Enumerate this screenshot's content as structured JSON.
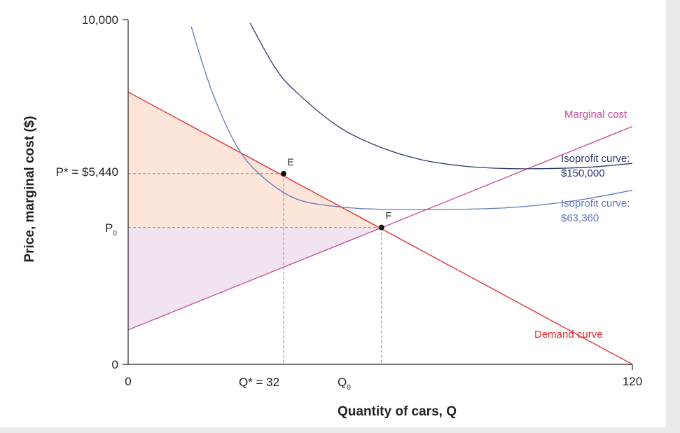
{
  "chart_data": {
    "type": "line",
    "xlabel": "Quantity of cars, Q",
    "ylabel": "Price, marginal cost ($)",
    "xlim": [
      0,
      120
    ],
    "ylim": [
      0,
      10000
    ],
    "x_ticks": [
      "0",
      "120"
    ],
    "y_ticks": [
      "0",
      "10,000"
    ],
    "series": [
      {
        "name": "Demand curve",
        "color": "#e8262b",
        "x": [
          0,
          120
        ],
        "y": [
          7900,
          0
        ]
      },
      {
        "name": "Marginal cost",
        "color": "#c9479b",
        "x": [
          0,
          120
        ],
        "y": [
          1000,
          6900
        ]
      },
      {
        "name_lines": [
          "Isoprofit curve:",
          "$63,360"
        ],
        "color": "#5f78bd",
        "x": [
          15,
          20,
          26,
          32,
          40,
          50,
          60,
          70,
          80,
          90,
          100,
          109,
          120
        ],
        "y": [
          9800,
          7900,
          6300,
          5440,
          4800,
          4570,
          4500,
          4490,
          4500,
          4540,
          4650,
          4800,
          5050
        ]
      },
      {
        "name_lines": [
          "Isoprofit curve:",
          "$150,000"
        ],
        "color": "#2a3a6b",
        "x": [
          29,
          35,
          40,
          50,
          60,
          70,
          80,
          90,
          100,
          110,
          120
        ],
        "y": [
          9900,
          8600,
          7900,
          6900,
          6300,
          5930,
          5750,
          5680,
          5680,
          5720,
          5830
        ]
      }
    ],
    "points": [
      {
        "label": "E",
        "x": 37,
        "y": 5530
      },
      {
        "label": "F",
        "x": 60.3,
        "y": 3970
      }
    ],
    "reference_labels": {
      "p_star": "P* = $5,440",
      "p0_main": "P",
      "p0_sub": "0",
      "q_star": "Q* = 32",
      "q0_main": "Q",
      "q0_sub": "0"
    },
    "shaded_regions": [
      {
        "name": "consumer-surplus",
        "color": "#fde5da"
      },
      {
        "name": "producer-surplus",
        "color": "#f1e4f0"
      }
    ],
    "grid": false
  }
}
